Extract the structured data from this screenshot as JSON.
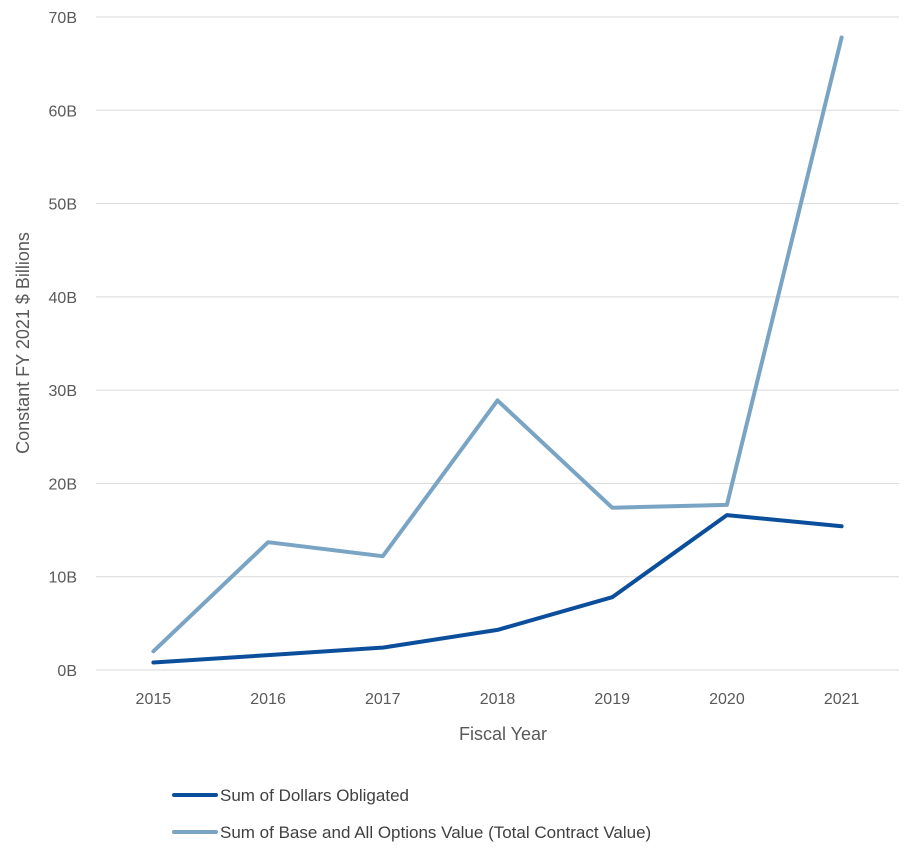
{
  "chart_data": {
    "type": "line",
    "title": "",
    "xlabel": "Fiscal Year",
    "ylabel": "Constant FY 2021 $ Billions",
    "categories": [
      "2015",
      "2016",
      "2017",
      "2018",
      "2019",
      "2020",
      "2021"
    ],
    "y_tick_labels": [
      "0B",
      "10B",
      "20B",
      "30B",
      "40B",
      "50B",
      "60B",
      "70B"
    ],
    "ylim": [
      0,
      70
    ],
    "grid": true,
    "legend_position": "bottom",
    "series": [
      {
        "name": "Sum of Dollars Obligated",
        "color": "#0b4f9c",
        "values": [
          0.8,
          1.6,
          2.4,
          4.3,
          7.8,
          16.6,
          15.4
        ]
      },
      {
        "name": "Sum of Base and All Options Value (Total Contract Value)",
        "color": "#7aa4c4",
        "values": [
          2.0,
          13.7,
          12.2,
          28.9,
          17.4,
          17.7,
          67.8
        ]
      }
    ]
  }
}
